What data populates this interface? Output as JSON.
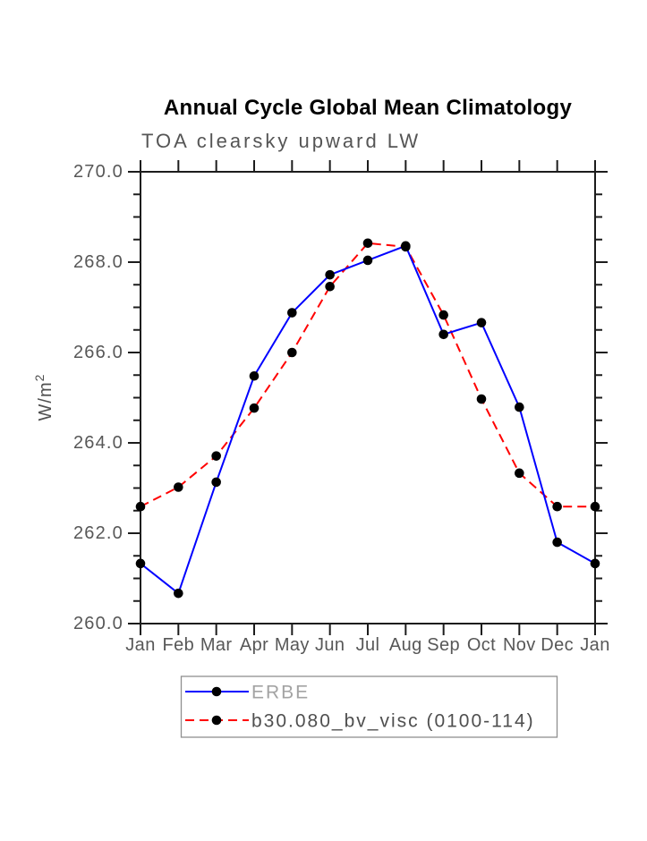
{
  "chart_data": {
    "type": "line",
    "title": "Annual Cycle Global Mean Climatology",
    "subtitle": "TOA clearsky upward LW",
    "ylabel": "W/m",
    "ylabel_superscript": "2",
    "x_categories": [
      "Jan",
      "Feb",
      "Mar",
      "Apr",
      "May",
      "Jun",
      "Jul",
      "Aug",
      "Sep",
      "Oct",
      "Nov",
      "Dec",
      "Jan"
    ],
    "ylim": [
      260.0,
      270.0
    ],
    "ytick_major_step": 2.0,
    "ytick_minor_step": 0.5,
    "ytick_label_format_decimals": 1,
    "grid": "off",
    "axis_color": "#1c1c1c",
    "tick_label_color": "#575757",
    "legend_position": "below-plot",
    "legend_border_color": "#909090",
    "marker": "filled-circle",
    "marker_color": "#000000",
    "series": [
      {
        "name": "ERBE",
        "line_color": "#0000ff",
        "line_style": "solid",
        "label_color": "#a3a3a3",
        "values": [
          261.33,
          260.67,
          263.13,
          265.48,
          266.88,
          267.72,
          268.04,
          268.36,
          266.4,
          266.66,
          264.79,
          261.8,
          261.33
        ]
      },
      {
        "name": "b30.080_bv_visc (0100-114)",
        "line_color": "#ff0000",
        "line_style": "dashed",
        "label_color": "#4f4f4f",
        "values": [
          262.59,
          263.02,
          263.71,
          264.77,
          266.0,
          267.46,
          268.42,
          268.34,
          266.83,
          264.97,
          263.33,
          262.59,
          262.59
        ]
      }
    ]
  }
}
